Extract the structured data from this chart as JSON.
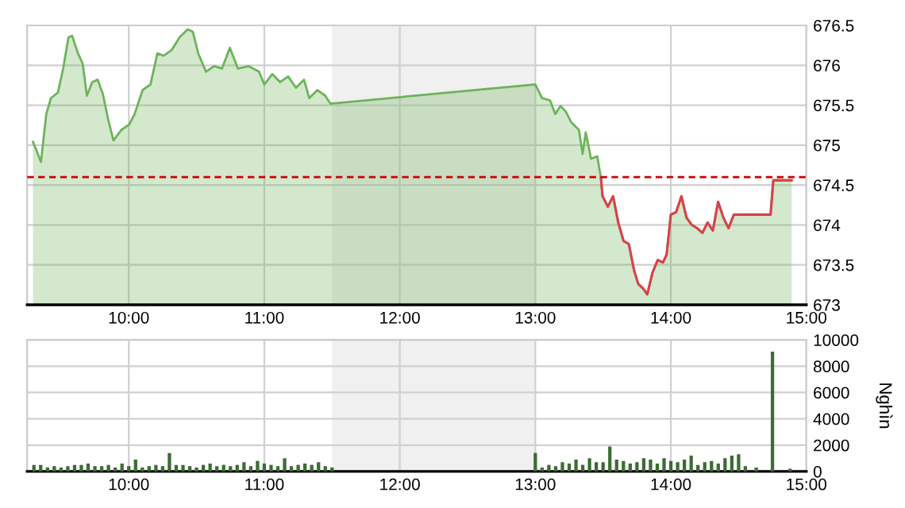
{
  "chart_data": [
    {
      "type": "area",
      "grid": true,
      "legend": false,
      "xlim": [
        9.25,
        15
      ],
      "xticks": [
        {
          "value": 10,
          "label": "10:00"
        },
        {
          "value": 11,
          "label": "11:00"
        },
        {
          "value": 12,
          "label": "12:00"
        },
        {
          "value": 13,
          "label": "13:00"
        },
        {
          "value": 14,
          "label": "14:00"
        },
        {
          "value": 15,
          "label": "15:00"
        }
      ],
      "ylim": [
        673,
        676.5
      ],
      "yticks": [
        673,
        673.5,
        674,
        674.5,
        675,
        675.5,
        676,
        676.5
      ],
      "bands": [
        {
          "axis": "x",
          "from": 11.5,
          "to": 13,
          "color": "#f0f0f0"
        }
      ],
      "ref_lines": [
        {
          "axis": "y",
          "value": 674.6,
          "color": "#cc0000",
          "line_style": "dashed"
        }
      ],
      "series": [
        {
          "type": "area",
          "color": "#6db35a",
          "x": [
            9.293,
            9.32,
            9.352,
            9.391,
            9.426,
            9.477,
            9.516,
            9.555,
            9.582,
            9.625,
            9.66,
            9.691,
            9.73,
            9.77,
            9.809,
            9.848,
            9.887,
            9.945,
            10.004,
            10.043,
            10.102,
            10.16,
            10.211,
            10.258,
            10.316,
            10.375,
            10.434,
            10.473,
            10.512,
            10.57,
            10.629,
            10.688,
            10.746,
            10.805,
            10.883,
            10.961,
            11.0,
            11.059,
            11.117,
            11.176,
            11.234,
            11.293,
            11.332,
            11.391,
            11.449,
            11.488,
            13.0,
            13.05,
            13.109,
            13.147,
            13.186,
            13.225,
            13.264,
            13.322,
            13.349,
            13.372,
            13.411,
            13.457,
            13.484,
            13.496,
            13.535,
            13.574,
            13.612,
            13.651,
            13.69,
            13.729,
            13.76,
            13.798,
            13.826,
            13.864,
            13.903,
            13.942,
            13.969,
            14.0,
            14.039,
            14.078,
            14.116,
            14.155,
            14.194,
            14.233,
            14.271,
            14.31,
            14.349,
            14.388,
            14.426,
            14.465,
            14.504,
            14.736,
            14.756,
            14.891
          ],
          "values": [
            675.04,
            674.93,
            674.79,
            675.39,
            675.59,
            675.66,
            675.96,
            676.35,
            676.37,
            676.15,
            676.02,
            675.62,
            675.79,
            675.82,
            675.64,
            675.32,
            675.06,
            675.19,
            675.26,
            675.39,
            675.69,
            675.76,
            676.15,
            676.12,
            676.19,
            676.35,
            676.45,
            676.42,
            676.15,
            675.92,
            675.99,
            675.96,
            676.22,
            675.96,
            675.99,
            675.92,
            675.76,
            675.89,
            675.79,
            675.86,
            675.72,
            675.82,
            675.59,
            675.69,
            675.62,
            675.52,
            675.76,
            675.59,
            675.56,
            675.39,
            675.49,
            675.42,
            675.29,
            675.19,
            674.89,
            675.16,
            674.83,
            674.86,
            674.59,
            674.36,
            674.23,
            674.36,
            674.03,
            673.8,
            673.76,
            673.43,
            673.26,
            673.2,
            673.13,
            673.4,
            673.56,
            673.53,
            673.63,
            674.13,
            674.16,
            674.36,
            674.09,
            674.0,
            673.96,
            673.9,
            674.03,
            673.93,
            674.29,
            674.09,
            673.96,
            674.13,
            674.13,
            674.13,
            674.56,
            674.56
          ]
        },
        {
          "type": "line",
          "color": "#d9424a",
          "x": [
            13.484,
            13.496,
            13.535,
            13.574,
            13.612,
            13.651,
            13.69,
            13.729,
            13.76,
            13.798,
            13.826,
            13.864,
            13.903,
            13.942,
            13.969,
            14.0,
            14.039,
            14.078,
            14.116,
            14.155,
            14.194,
            14.233,
            14.271,
            14.31,
            14.349,
            14.388,
            14.426,
            14.465,
            14.504,
            14.736,
            14.756,
            14.891
          ],
          "values": [
            674.59,
            674.36,
            674.23,
            674.36,
            674.03,
            673.8,
            673.76,
            673.43,
            673.26,
            673.2,
            673.13,
            673.4,
            673.56,
            673.53,
            673.63,
            674.13,
            674.16,
            674.36,
            674.09,
            674.0,
            673.96,
            673.9,
            674.03,
            673.93,
            674.29,
            674.09,
            673.96,
            674.13,
            674.13,
            674.13,
            674.56,
            674.56
          ]
        }
      ]
    },
    {
      "type": "bar",
      "grid": true,
      "legend": false,
      "ylabel": "Nghìn",
      "xlim": [
        9.25,
        15
      ],
      "xticks": [
        {
          "value": 10,
          "label": "10:00"
        },
        {
          "value": 11,
          "label": "11:00"
        },
        {
          "value": 12,
          "label": "12:00"
        },
        {
          "value": 13,
          "label": "13:00"
        },
        {
          "value": 14,
          "label": "14:00"
        },
        {
          "value": 15,
          "label": "15:00"
        }
      ],
      "ylim": [
        0,
        10000
      ],
      "yticks": [
        0,
        2000,
        4000,
        6000,
        8000,
        10000
      ],
      "bands": [
        {
          "axis": "x",
          "from": 11.5,
          "to": 13,
          "color": "#f0f0f0"
        }
      ],
      "series": [
        {
          "color": "#3d6b35",
          "x": [
            9.3,
            9.35,
            9.4,
            9.45,
            9.5,
            9.55,
            9.6,
            9.65,
            9.7,
            9.75,
            9.8,
            9.85,
            9.9,
            9.95,
            10.0,
            10.05,
            10.1,
            10.15,
            10.2,
            10.25,
            10.3,
            10.35,
            10.4,
            10.45,
            10.5,
            10.55,
            10.6,
            10.65,
            10.7,
            10.75,
            10.8,
            10.85,
            10.9,
            10.95,
            11.0,
            11.05,
            11.1,
            11.15,
            11.2,
            11.25,
            11.3,
            11.35,
            11.4,
            11.45,
            11.5,
            13.0,
            13.05,
            13.1,
            13.15,
            13.2,
            13.25,
            13.3,
            13.35,
            13.4,
            13.45,
            13.5,
            13.55,
            13.6,
            13.65,
            13.7,
            13.75,
            13.8,
            13.85,
            13.9,
            13.95,
            14.0,
            14.05,
            14.1,
            14.15,
            14.2,
            14.25,
            14.3,
            14.35,
            14.4,
            14.45,
            14.5,
            14.55,
            14.63,
            14.75,
            14.88
          ],
          "values": [
            500,
            500,
            300,
            400,
            300,
            400,
            500,
            500,
            600,
            400,
            400,
            500,
            300,
            600,
            400,
            900,
            300,
            400,
            500,
            400,
            1400,
            500,
            500,
            400,
            300,
            500,
            600,
            400,
            500,
            400,
            500,
            700,
            400,
            800,
            600,
            500,
            400,
            1000,
            400,
            500,
            600,
            500,
            700,
            400,
            300,
            1400,
            300,
            500,
            400,
            700,
            600,
            900,
            500,
            1000,
            700,
            700,
            1900,
            900,
            800,
            600,
            700,
            1000,
            900,
            600,
            1000,
            800,
            700,
            900,
            1200,
            500,
            700,
            800,
            600,
            1000,
            1200,
            1300,
            400,
            300,
            9100,
            200
          ]
        }
      ]
    }
  ]
}
